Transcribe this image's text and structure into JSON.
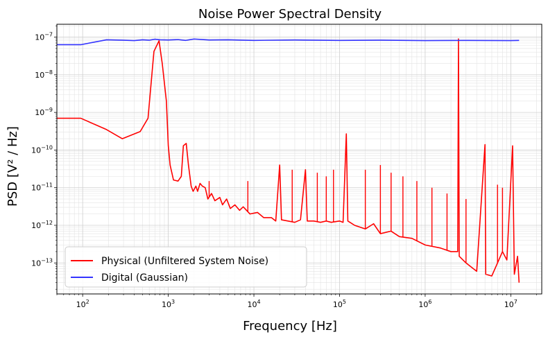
{
  "chart_data": {
    "type": "line",
    "title": "Noise Power Spectral Density",
    "xlabel": "Frequency [Hz]",
    "ylabel": "PSD [V² / Hz]",
    "xscale": "log",
    "yscale": "log",
    "xlim": [
      50,
      23000000.0
    ],
    "ylim": [
      1.5e-14,
      2.2e-07
    ],
    "x_ticks": [
      {
        "value": 100,
        "base": "10",
        "exp": "2"
      },
      {
        "value": 1000,
        "base": "10",
        "exp": "3"
      },
      {
        "value": 10000,
        "base": "10",
        "exp": "4"
      },
      {
        "value": 100000,
        "base": "10",
        "exp": "5"
      },
      {
        "value": 1000000,
        "base": "10",
        "exp": "6"
      },
      {
        "value": 10000000,
        "base": "10",
        "exp": "7"
      }
    ],
    "y_ticks": [
      {
        "value": 1e-13,
        "base": "10",
        "exp": "−13"
      },
      {
        "value": 1e-12,
        "base": "10",
        "exp": "−12"
      },
      {
        "value": 1e-11,
        "base": "10",
        "exp": "−11"
      },
      {
        "value": 1e-10,
        "base": "10",
        "exp": "−10"
      },
      {
        "value": 1e-09,
        "base": "10",
        "exp": "−9"
      },
      {
        "value": 1e-08,
        "base": "10",
        "exp": "−8"
      },
      {
        "value": 1e-07,
        "base": "10",
        "exp": "−7"
      }
    ],
    "grid": true,
    "legend": {
      "placement": "lower-left"
    },
    "series": [
      {
        "name": "Physical (Unfiltered System Noise)",
        "color": "#ff0000",
        "points": [
          [
            50,
            7e-10
          ],
          [
            95,
            7e-10
          ],
          [
            190,
            3.5e-10
          ],
          [
            290,
            2e-10
          ],
          [
            470,
            3.1e-10
          ],
          [
            580,
            7e-10
          ],
          [
            680,
            4.2e-08
          ],
          [
            780,
            8e-08
          ],
          [
            850,
            2e-08
          ],
          [
            950,
            2e-09
          ],
          [
            1000,
            1.3e-10
          ],
          [
            1050,
            4e-11
          ],
          [
            1150,
            1.6e-11
          ],
          [
            1300,
            1.5e-11
          ],
          [
            1420,
            2e-11
          ],
          [
            1500,
            1.3e-10
          ],
          [
            1620,
            1.5e-10
          ],
          [
            1720,
            4e-11
          ],
          [
            1850,
            1.1e-11
          ],
          [
            1950,
            8e-12
          ],
          [
            2100,
            1.1e-11
          ],
          [
            2200,
            8e-12
          ],
          [
            2350,
            1.3e-11
          ],
          [
            2500,
            1.1e-11
          ],
          [
            2700,
            1e-11
          ],
          [
            2900,
            5e-12
          ],
          [
            3200,
            7e-12
          ],
          [
            3500,
            4.5e-12
          ],
          [
            4000,
            5.5e-12
          ],
          [
            4300,
            3.5e-12
          ],
          [
            4800,
            5e-12
          ],
          [
            5300,
            2.8e-12
          ],
          [
            6000,
            3.5e-12
          ],
          [
            6800,
            2.5e-12
          ],
          [
            7500,
            3.1e-12
          ],
          [
            9000,
            2e-12
          ],
          [
            11000,
            2.2e-12
          ],
          [
            13000,
            1.6e-12
          ],
          [
            16000,
            1.6e-12
          ],
          [
            18000,
            1.3e-12
          ],
          [
            20000,
            4e-11
          ],
          [
            21000,
            1.4e-12
          ],
          [
            25000,
            1.3e-12
          ],
          [
            30000,
            1.2e-12
          ],
          [
            35000,
            1.4e-12
          ],
          [
            40000,
            3e-11
          ],
          [
            42000,
            1.3e-12
          ],
          [
            50000,
            1.3e-12
          ],
          [
            60000,
            1.2e-12
          ],
          [
            70000,
            1.3e-12
          ],
          [
            80000,
            1.2e-12
          ],
          [
            100000,
            1.3e-12
          ],
          [
            110000,
            1.2e-12
          ],
          [
            120000,
            2.7e-10
          ],
          [
            125000,
            1.3e-12
          ],
          [
            150000,
            1e-12
          ],
          [
            200000,
            8e-13
          ],
          [
            250000,
            1.1e-12
          ],
          [
            300000,
            6e-13
          ],
          [
            400000,
            7e-13
          ],
          [
            500000,
            5e-13
          ],
          [
            700000,
            4.5e-13
          ],
          [
            1000000,
            3e-13
          ],
          [
            1500000,
            2.5e-13
          ],
          [
            2000000,
            2e-13
          ],
          [
            2400000,
            2e-13
          ],
          [
            2450000,
            9e-08
          ],
          [
            2500000,
            1.5e-13
          ],
          [
            3000000,
            1e-13
          ],
          [
            4000000,
            6e-14
          ],
          [
            5000000,
            1.4e-10
          ],
          [
            5100000,
            5e-14
          ],
          [
            6000000,
            4.5e-14
          ],
          [
            7000000,
            1e-13
          ],
          [
            8000000,
            2e-13
          ],
          [
            9000000,
            1.2e-13
          ],
          [
            10500000,
            1.3e-10
          ],
          [
            11000000,
            5e-14
          ],
          [
            12000000,
            1.5e-13
          ],
          [
            12500000,
            3e-14
          ]
        ],
        "peaks": [
          [
            3000,
            1.5e-11
          ],
          [
            8500,
            1.5e-11
          ],
          [
            20000,
            4e-11
          ],
          [
            28000,
            3e-11
          ],
          [
            40000,
            3e-11
          ],
          [
            55000,
            2.5e-11
          ],
          [
            70000,
            2e-11
          ],
          [
            85000,
            3e-11
          ],
          [
            120000,
            2.7e-10
          ],
          [
            200000,
            3e-11
          ],
          [
            300000,
            4e-11
          ],
          [
            400000,
            2.5e-11
          ],
          [
            550000,
            2e-11
          ],
          [
            800000,
            1.5e-11
          ],
          [
            1200000,
            1e-11
          ],
          [
            1800000,
            7e-12
          ],
          [
            3000000,
            5e-12
          ],
          [
            7000000,
            1.2e-11
          ],
          [
            8000000,
            1e-11
          ]
        ]
      },
      {
        "name": "Digital (Gaussian)",
        "color": "#3333ff",
        "points": [
          [
            50,
            6.3e-08
          ],
          [
            95,
            6.3e-08
          ],
          [
            190,
            8.5e-08
          ],
          [
            290,
            8.3e-08
          ],
          [
            400,
            8.1e-08
          ],
          [
            500,
            8.5e-08
          ],
          [
            600,
            8.3e-08
          ],
          [
            700,
            8.8e-08
          ],
          [
            800,
            8.5e-08
          ],
          [
            1000,
            8.4e-08
          ],
          [
            1300,
            8.6e-08
          ],
          [
            1600,
            8.2e-08
          ],
          [
            2000,
            8.9e-08
          ],
          [
            3000,
            8.4e-08
          ],
          [
            5000,
            8.5e-08
          ],
          [
            10000,
            8.2e-08
          ],
          [
            30000,
            8.4e-08
          ],
          [
            100000,
            8.2e-08
          ],
          [
            300000,
            8.3e-08
          ],
          [
            1000000,
            8.1e-08
          ],
          [
            3000000,
            8.2e-08
          ],
          [
            10000000,
            8.1e-08
          ],
          [
            12500000,
            8.2e-08
          ]
        ]
      }
    ]
  }
}
